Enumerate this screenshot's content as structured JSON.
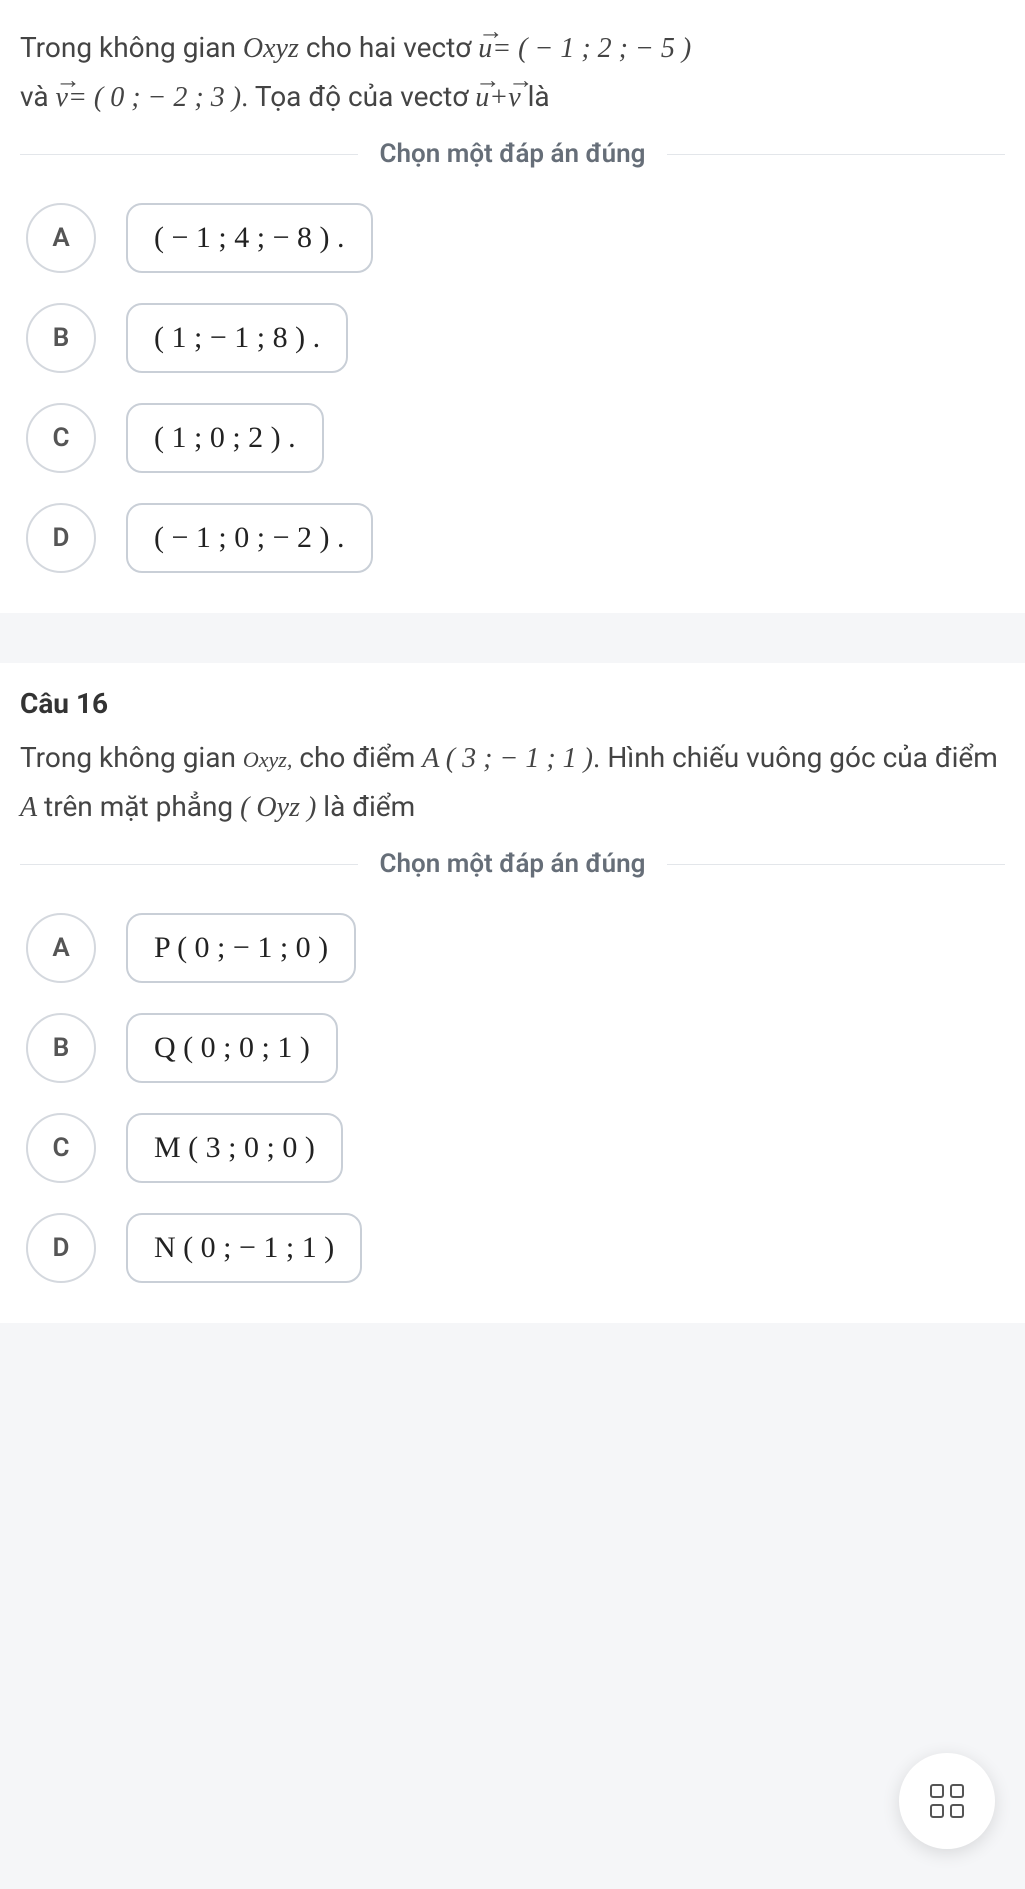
{
  "q1": {
    "text_part1": "Trong không gian ",
    "space_var": "Oxyz",
    "text_part2": " cho hai vectơ ",
    "vec_u": "u",
    "eq1": "= ( − 1 ; 2 ; − 5 )",
    "text_part3": "và ",
    "vec_v": "v",
    "eq2": "= ( 0 ; − 2 ; 3 )",
    "text_part4": ". Tọa độ của vectơ ",
    "plus": "+",
    "text_part5": " là",
    "instruction": "Chọn một đáp án đúng",
    "options": {
      "A": "( − 1 ; 4 ; − 8 ) .",
      "B": "( 1 ; − 1 ; 8 ) .",
      "C": "( 1 ; 0 ; 2 ) .",
      "D": "( − 1 ; 0 ; − 2 ) ."
    },
    "letters": {
      "A": "A",
      "B": "B",
      "C": "C",
      "D": "D"
    }
  },
  "q2": {
    "label": "Câu 16",
    "text_part1": "Trong không gian ",
    "space_var": "Oxyz,",
    "text_part2": " cho điểm ",
    "point_A": "A ( 3 ; − 1 ; 1 )",
    "text_part3": ". Hình chiếu vuông góc của điểm ",
    "A_var": "A",
    "text_part4": " trên mặt phẳng ",
    "plane": "( Oyz )",
    "text_part5": " là điểm",
    "instruction": "Chọn một đáp án đúng",
    "options": {
      "A": "P ( 0 ; − 1 ; 0 )",
      "B": "Q ( 0 ; 0 ; 1 )",
      "C": "M ( 3 ; 0 ; 0 )",
      "D": "N ( 0 ; − 1 ; 1 )"
    },
    "letters": {
      "A": "A",
      "B": "B",
      "C": "C",
      "D": "D"
    }
  },
  "colors": {
    "page_bg": "#f5f6f8",
    "card_bg": "#ffffff",
    "text": "#333333",
    "muted": "#666e78",
    "border": "#c9cfd7",
    "divider": "#e3e6ea"
  }
}
